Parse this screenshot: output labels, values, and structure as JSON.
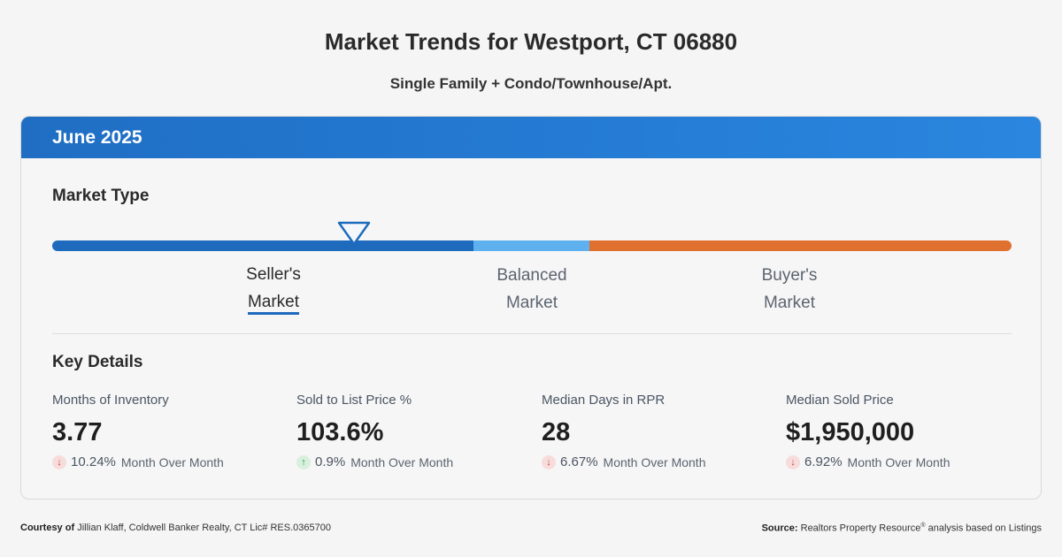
{
  "header": {
    "title": "Market Trends for Westport, CT 06880",
    "subtitle": "Single Family + Condo/Townhouse/Apt."
  },
  "card": {
    "period": "June 2025",
    "market_type": {
      "title": "Market Type",
      "indicator_position_fraction": 0.315,
      "segments": [
        {
          "name": "Seller's Market",
          "color": "#1e6bbd"
        },
        {
          "name": "Balanced Market",
          "color": "#5fb0ee"
        },
        {
          "name": "Buyer's Market",
          "color": "#e0702f"
        }
      ],
      "labels": {
        "seller": {
          "line1": "Seller's",
          "line2": "Market",
          "active": true
        },
        "balanced": {
          "line1": "Balanced",
          "line2": "Market",
          "active": false
        },
        "buyer": {
          "line1": "Buyer's",
          "line2": "Market",
          "active": false
        }
      }
    },
    "key_details": {
      "title": "Key Details",
      "stats": [
        {
          "label": "Months of Inventory",
          "value": "3.77",
          "direction": "down",
          "change": "10.24%",
          "suffix": "Month Over Month"
        },
        {
          "label": "Sold to List Price %",
          "value": "103.6%",
          "direction": "up",
          "change": "0.9%",
          "suffix": "Month Over Month"
        },
        {
          "label": "Median Days in RPR",
          "value": "28",
          "direction": "down",
          "change": "6.67%",
          "suffix": "Month Over Month"
        },
        {
          "label": "Median Sold Price",
          "value": "$1,950,000",
          "direction": "down",
          "change": "6.92%",
          "suffix": "Month Over Month"
        }
      ]
    }
  },
  "footer": {
    "courtesy_label": "Courtesy of",
    "courtesy_text": "Jillian Klaff, Coldwell Banker Realty, CT Lic# RES.0365700",
    "source_label": "Source:",
    "source_text_1": "Realtors Property Resource",
    "source_mark": "®",
    "source_text_2": " analysis based on Listings"
  },
  "icons": {
    "down": "arrow-down-icon",
    "up": "arrow-up-icon",
    "pointer": "triangle-pointer-icon"
  }
}
